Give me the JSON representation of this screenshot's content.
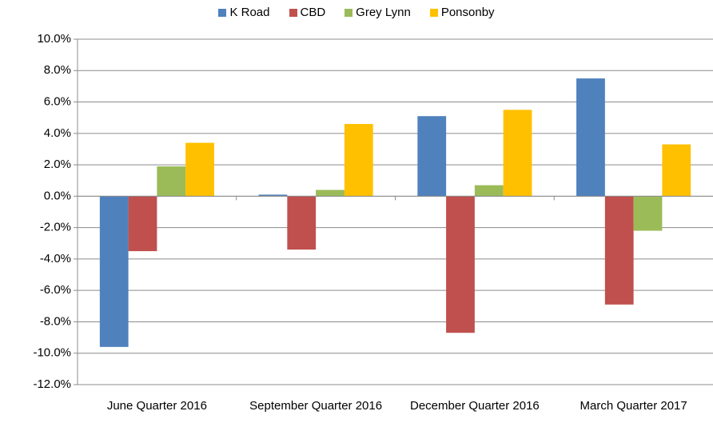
{
  "chart_data": {
    "type": "bar",
    "categories": [
      "June Quarter 2016",
      "September Quarter 2016",
      "December Quarter 2016",
      "March Quarter 2017"
    ],
    "series": [
      {
        "name": "K Road",
        "color": "#4f81bd",
        "values": [
          -9.6,
          0.1,
          5.1,
          7.5
        ]
      },
      {
        "name": "CBD",
        "color": "#c0504d",
        "values": [
          -3.5,
          -3.4,
          -8.7,
          -6.9
        ]
      },
      {
        "name": "Grey Lynn",
        "color": "#9bbb59",
        "values": [
          1.9,
          0.4,
          0.7,
          -2.2
        ]
      },
      {
        "name": "Ponsonby",
        "color": "#ffc000",
        "values": [
          3.4,
          4.6,
          5.5,
          3.3
        ]
      }
    ],
    "ylim": [
      -12,
      10
    ],
    "yticks": [
      {
        "value": -12,
        "label": "-12.0%"
      },
      {
        "value": -10,
        "label": "-10.0%"
      },
      {
        "value": -8,
        "label": "-8.0%"
      },
      {
        "value": -6,
        "label": "-6.0%"
      },
      {
        "value": -4,
        "label": "-4.0%"
      },
      {
        "value": -2,
        "label": "-2.0%"
      },
      {
        "value": 0,
        "label": "0.0%"
      },
      {
        "value": 2,
        "label": "2.0%"
      },
      {
        "value": 4,
        "label": "4.0%"
      },
      {
        "value": 6,
        "label": "6.0%"
      },
      {
        "value": 8,
        "label": "8.0%"
      },
      {
        "value": 10,
        "label": "10.0%"
      }
    ],
    "grid": true,
    "legend": "top"
  }
}
